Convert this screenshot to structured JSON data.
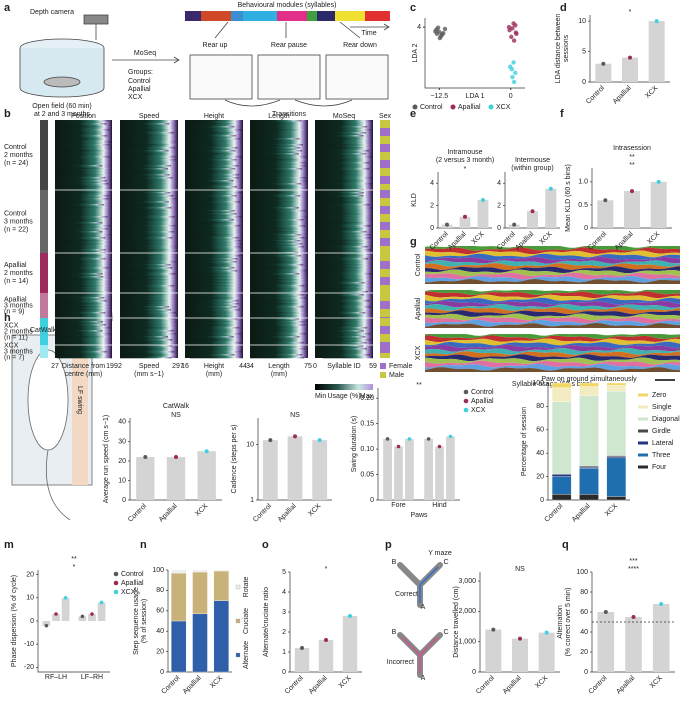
{
  "panel_labels": [
    "a",
    "b",
    "c",
    "d",
    "e",
    "f",
    "g",
    "h",
    "i",
    "j",
    "k",
    "l",
    "m",
    "n",
    "o",
    "p",
    "q"
  ],
  "panel_a": {
    "camera": "Depth camera",
    "arena": [
      "Open field (60 min)",
      "at 2 and 3 months"
    ],
    "method": "MoSeq",
    "groups_title": "Groups:",
    "groups": [
      "Control",
      "Apallial",
      "XCX"
    ],
    "modules": "Behavioural modules (syllables)",
    "time": "Time",
    "poses": [
      "Rear up",
      "Rear pause",
      "Rear down"
    ],
    "transitions": "Transitions"
  },
  "panel_b": {
    "columns": [
      "Position",
      "Speed",
      "Height",
      "Length",
      "MoSeq",
      "Sex"
    ],
    "rows": [
      [
        "Control",
        "2 months",
        "(n = 24)"
      ],
      [
        "Control",
        "3 months",
        "(n = 22)"
      ],
      [
        "Apallial",
        "2 months",
        "(n = 14)"
      ],
      [
        "Apallial",
        "3 months",
        "(n = 9)"
      ],
      [
        "XCX",
        "2 months",
        "(n = 11)"
      ],
      [
        "XCX",
        "3 months",
        "(n = 7)"
      ]
    ],
    "axes": [
      {
        "min": "27",
        "max": "199",
        "label": [
          "Distance from",
          "centre (mm)"
        ]
      },
      {
        "min": "2",
        "max": "297",
        "label": [
          "Speed",
          "(mm s−1)"
        ]
      },
      {
        "min": "16",
        "max": "44",
        "label": [
          "Height",
          "(mm)"
        ]
      },
      {
        "min": "34",
        "max": "75",
        "label": [
          "Length",
          "(mm)"
        ]
      },
      {
        "min": "0",
        "max": "59",
        "label": [
          "Syllable ID"
        ]
      }
    ],
    "colorbar": {
      "min": "Min",
      "label": "Usage (%)",
      "max": "Max"
    },
    "sex_legend": [
      "Female",
      "Male"
    ]
  },
  "panel_g": {
    "rows": [
      "Control",
      "Apallial",
      "XCX"
    ],
    "xlabel": "Syllable usage (60 s bins)"
  },
  "panel_h": {
    "title": "CatWalk",
    "swing": "LF swing"
  },
  "panel_p": {
    "title": "Y maze",
    "arms": [
      "A",
      "B",
      "C"
    ],
    "correct": "Correct",
    "incorrect": "Incorrect"
  },
  "chart_data": [
    {
      "type": "scatter",
      "xlabel": "LDA 1",
      "ylabel": "LDA 2",
      "xlim": [
        -15,
        2.5
      ],
      "ylim": [
        -6,
        5.5
      ],
      "xticks": [
        {
          "value": -12.5,
          "label": "−12.5"
        },
        0
      ],
      "yticks": [
        4
      ],
      "series": [
        {
          "name": "Control",
          "color": "#5a5a5a",
          "x": [
            -12.5,
            -13,
            -12,
            -11.8,
            -12.7,
            -12.2,
            -13.2,
            -11.5,
            -12.4,
            -12.9
          ],
          "values": [
            3.2,
            3.6,
            2.8,
            3.0,
            3.9,
            2.5,
            3.3,
            3.7,
            2.2,
            2.9
          ]
        },
        {
          "name": "Apallial",
          "color": "#9c2a5c",
          "x": [
            0.3,
            0.8,
            -0.2,
            1.0,
            0.5,
            0.1,
            0.9,
            -0.3,
            0.6
          ],
          "values": [
            3.8,
            4.3,
            3.5,
            2.9,
            4.6,
            2.4,
            3.1,
            4.0,
            1.8
          ]
        },
        {
          "name": "XCX",
          "color": "#3fd0e0",
          "x": [
            0.5,
            -0.1,
            0.8,
            0.3,
            0.6,
            0.2
          ],
          "values": [
            -1.8,
            -2.5,
            -3.5,
            -4.2,
            -5.0,
            -2.9
          ]
        }
      ]
    },
    {
      "type": "bar",
      "ylabel": [
        "LDA distance between",
        "sessions"
      ],
      "categories": [
        "Control",
        "Apallial",
        "XCX"
      ],
      "values": [
        3,
        4,
        10
      ],
      "colors": [
        "#5a5a5a",
        "#9c2a5c",
        "#3fd0e0"
      ],
      "bar_color": "#d4d4d4",
      "ylim": [
        0,
        11
      ],
      "yticks": [
        0,
        5,
        10
      ],
      "annotations": [
        "*"
      ]
    },
    {
      "type": "bar",
      "title": [
        "Intramouse",
        "(2 versus 3 month)"
      ],
      "ylabel": "KLD",
      "categories": [
        "Control",
        "Apallial",
        "XCX"
      ],
      "values": [
        0.3,
        1,
        2.5
      ],
      "colors": [
        "#5a5a5a",
        "#9c2a5c",
        "#3fd0e0"
      ],
      "bar_color": "#d4d4d4",
      "ylim": [
        0,
        5
      ],
      "yticks": [
        0,
        2,
        4
      ],
      "annotations": [
        "*"
      ]
    },
    {
      "type": "bar",
      "title": [
        "Intermouse",
        "(within group)"
      ],
      "categories": [
        "Control",
        "Apallial",
        "XCX"
      ],
      "values": [
        0.3,
        1.5,
        3.5
      ],
      "colors": [
        "#5a5a5a",
        "#9c2a5c",
        "#3fd0e0"
      ],
      "bar_color": "#d4d4d4",
      "ylim": [
        0,
        5
      ],
      "yticks": [
        0,
        2,
        4
      ]
    },
    {
      "type": "bar",
      "title": "Intrasession",
      "ylabel": "Mean KLD (60 s bins)",
      "categories": [
        "Control",
        "Apallial",
        "XCX"
      ],
      "values": [
        0.6,
        0.8,
        1.0
      ],
      "colors": [
        "#5a5a5a",
        "#9c2a5c",
        "#3fd0e0"
      ],
      "bar_color": "#d4d4d4",
      "ylim": [
        0,
        1.3
      ],
      "yticks": [
        0,
        0.5,
        {
          "value": 1,
          "label": "1.0"
        }
      ],
      "annotations": [
        "**",
        "**"
      ]
    },
    {
      "type": "bar",
      "title": "CatWalk",
      "ylabel": "Average run speed (cm s−1)",
      "categories": [
        "Control",
        "Apallial",
        "XCX"
      ],
      "values": [
        22,
        22,
        25
      ],
      "colors": [
        "#5a5a5a",
        "#9c2a5c",
        "#3fd0e0"
      ],
      "bar_color": "#d4d4d4",
      "ylim": [
        0,
        42
      ],
      "yticks": [
        0,
        10,
        20,
        30,
        40
      ],
      "annotations": [
        "NS"
      ]
    },
    {
      "type": "bar",
      "ylabel": "Cadence (steps per s)",
      "categories": [
        "Control",
        "Apallial",
        "XCX"
      ],
      "values": [
        12,
        14,
        12
      ],
      "colors": [
        "#5a5a5a",
        "#9c2a5c",
        "#3fd0e0"
      ],
      "bar_color": "#d4d4d4",
      "log_y": true,
      "ylim": [
        1,
        30
      ],
      "yticks": [
        1,
        10
      ],
      "annotations": [
        "NS"
      ]
    },
    {
      "type": "bar",
      "ylabel": "Swing duration (s)",
      "xlabel": "Paws",
      "categories": [
        "Fore",
        "Hind"
      ],
      "bar_color": "#d4d4d4",
      "ylim": [
        0,
        0.22
      ],
      "yticks": [
        0,
        0.05,
        {
          "value": 0.1,
          "label": "0.10"
        },
        0.15,
        {
          "value": 0.2,
          "label": "0.20"
        }
      ],
      "annotations": [
        "**"
      ],
      "legend": "right",
      "series": [
        {
          "name": "Control",
          "color": "#5a5a5a",
          "values": [
            0.12,
            0.12
          ]
        },
        {
          "name": "Apallial",
          "color": "#9c2a5c",
          "values": [
            0.105,
            0.105
          ]
        },
        {
          "name": "XCX",
          "color": "#3fd0e0",
          "values": [
            0.12,
            0.125
          ]
        }
      ]
    },
    {
      "type": "stacked_bar",
      "title": "Paw on ground simultaneously",
      "ylabel": "Percentage of session",
      "categories": [
        "Control",
        "Apallial",
        "XCX"
      ],
      "ylim": [
        0,
        100
      ],
      "yticks": [
        0,
        20,
        40,
        60,
        80,
        100
      ],
      "legend": "right",
      "series": [
        {
          "name": "Four",
          "color": "#2b2b2b",
          "values": [
            5,
            5,
            3
          ]
        },
        {
          "name": "Three",
          "color": "#1f6fb0",
          "values": [
            15,
            22,
            33
          ]
        },
        {
          "name": "Lateral",
          "color": "#23357f",
          "values": [
            2,
            1,
            1
          ]
        },
        {
          "name": "Girdle",
          "color": "#4a4a4a",
          "values": [
            0,
            1,
            1
          ]
        },
        {
          "name": "Diagonal",
          "color": "#cfe6cf",
          "values": [
            62,
            60,
            55
          ]
        },
        {
          "name": "Single",
          "color": "#f3ecc2",
          "values": [
            12,
            8,
            5
          ]
        },
        {
          "name": "Zero",
          "color": "#f2d765",
          "values": [
            4,
            3,
            2
          ]
        }
      ]
    },
    {
      "type": "bar",
      "ylabel": "Phase dispersion (% of cycle)",
      "categories": [
        "RF–LH",
        "LF–RH"
      ],
      "bar_color": "#d4d4d4",
      "ylim": [
        -22,
        22
      ],
      "yticks": [
        -20,
        -10,
        0,
        10,
        20
      ],
      "annotations": [
        "*",
        "**"
      ],
      "legend": "right",
      "series": [
        {
          "name": "Control",
          "color": "#5a5a5a",
          "values": [
            -2,
            2
          ]
        },
        {
          "name": "Apallial",
          "color": "#9c2a5c",
          "values": [
            3,
            3
          ]
        },
        {
          "name": "XCX",
          "color": "#3fd0e0",
          "values": [
            10,
            8
          ]
        }
      ]
    },
    {
      "type": "stacked_bar",
      "ylabel": [
        "Step sequence usage",
        "(% of session)"
      ],
      "categories": [
        "Control",
        "Apallial",
        "XCX"
      ],
      "ylim": [
        0,
        100
      ],
      "yticks": [
        0,
        20,
        40,
        60,
        80,
        100
      ],
      "legend": "side",
      "series": [
        {
          "name": "Alternate",
          "color": "#2f5fa8",
          "values": [
            50,
            57,
            70
          ]
        },
        {
          "name": "Cruciate",
          "color": "#c8b27a",
          "values": [
            47,
            41,
            29
          ]
        },
        {
          "name": "Rotate",
          "color": "#eeeeee",
          "values": [
            3,
            2,
            1
          ]
        }
      ]
    },
    {
      "type": "bar",
      "ylabel": "Alternate/cruciate ratio",
      "categories": [
        "Control",
        "Apallial",
        "XCX"
      ],
      "values": [
        1.2,
        1.6,
        2.8
      ],
      "colors": [
        "#5a5a5a",
        "#9c2a5c",
        "#3fd0e0"
      ],
      "bar_color": "#d4d4d4",
      "ylim": [
        0,
        5
      ],
      "yticks": [
        0,
        1,
        2,
        3,
        4,
        5
      ],
      "annotations": [
        "*"
      ]
    },
    {
      "type": "bar",
      "ylabel": "Distance travelled (cm)",
      "categories": [
        "Control",
        "Apallial",
        "XCX"
      ],
      "values": [
        1400,
        1100,
        1300
      ],
      "colors": [
        "#5a5a5a",
        "#9c2a5c",
        "#3fd0e0"
      ],
      "bar_color": "#d4d4d4",
      "ylim": [
        0,
        3300
      ],
      "yticks": [
        0,
        {
          "value": 1000,
          "label": "1,000"
        },
        {
          "value": 2000,
          "label": "2,000"
        },
        {
          "value": 3000,
          "label": "3,000"
        }
      ],
      "annotations": [
        "NS"
      ]
    },
    {
      "type": "bar",
      "ylabel": [
        "Alternation",
        "(% correct over 5 min)"
      ],
      "categories": [
        "Control",
        "Apallial",
        "XCX"
      ],
      "values": [
        60,
        55,
        68
      ],
      "colors": [
        "#5a5a5a",
        "#9c2a5c",
        "#3fd0e0"
      ],
      "bar_color": "#d4d4d4",
      "ylim": [
        0,
        100
      ],
      "yticks": [
        0,
        20,
        40,
        60,
        80,
        100
      ],
      "chance_line": 50,
      "annotations": [
        "****",
        "***"
      ]
    }
  ]
}
